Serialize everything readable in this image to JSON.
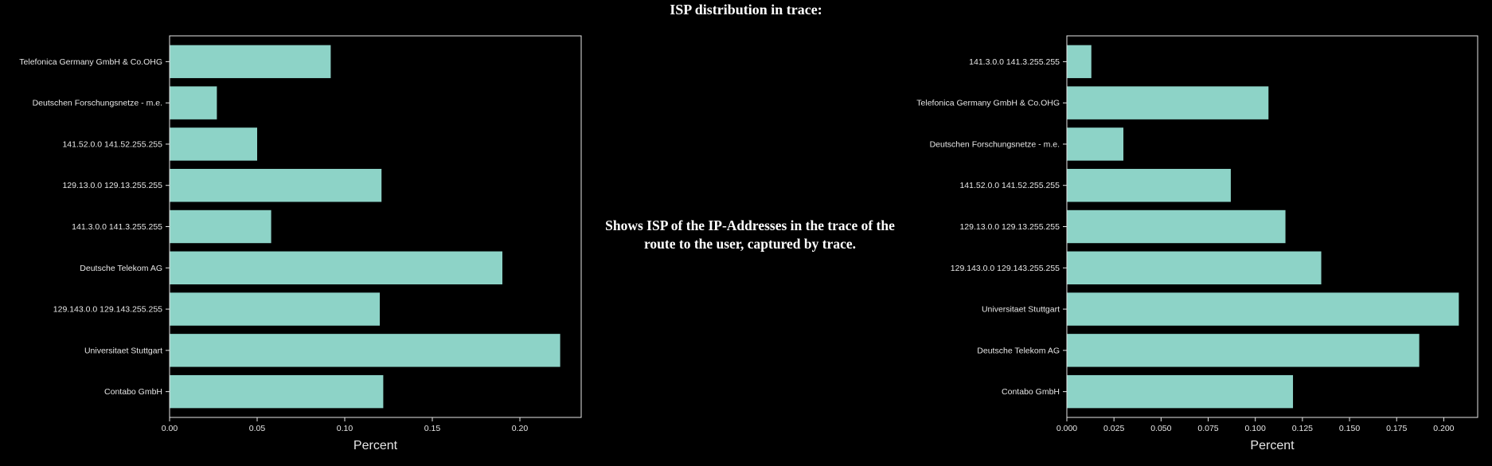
{
  "page": {
    "title": "ISP distribution in trace:",
    "description": "Shows ISP of the IP-Addresses in the trace of the route to the user, captured by trace.",
    "background": "#000000",
    "bar_color": "#8dd3c7"
  },
  "chart_data": [
    {
      "type": "bar",
      "orientation": "horizontal",
      "categories": [
        "Contabo GmbH",
        "Universitaet Stuttgart",
        "129.143.0.0 129.143.255.255",
        "Deutsche Telekom AG",
        "141.3.0.0 141.3.255.255",
        "129.13.0.0 129.13.255.255",
        "141.52.0.0 141.52.255.255",
        "Deutschen Forschungsnetze - m.e.",
        "Telefonica Germany GmbH & Co.OHG"
      ],
      "values": [
        0.122,
        0.223,
        0.12,
        0.19,
        0.058,
        0.121,
        0.05,
        0.027,
        0.092
      ],
      "xlabel": "Percent",
      "xlim": [
        0,
        0.235
      ],
      "xticks": [
        0.0,
        0.05,
        0.1,
        0.15,
        0.2
      ],
      "xtick_labels": [
        "0.00",
        "0.05",
        "0.10",
        "0.15",
        "0.20"
      ],
      "grid": false
    },
    {
      "type": "bar",
      "orientation": "horizontal",
      "categories": [
        "Contabo GmbH",
        "Deutsche Telekom AG",
        "Universitaet Stuttgart",
        "129.143.0.0 129.143.255.255",
        "129.13.0.0 129.13.255.255",
        "141.52.0.0 141.52.255.255",
        "Deutschen Forschungsnetze - m.e.",
        "Telefonica Germany GmbH & Co.OHG",
        "141.3.0.0 141.3.255.255"
      ],
      "values": [
        0.12,
        0.187,
        0.208,
        0.135,
        0.116,
        0.087,
        0.03,
        0.107,
        0.013
      ],
      "xlabel": "Percent",
      "xlim": [
        0,
        0.218
      ],
      "xticks": [
        0.0,
        0.025,
        0.05,
        0.075,
        0.1,
        0.125,
        0.15,
        0.175,
        0.2
      ],
      "xtick_labels": [
        "0.000",
        "0.025",
        "0.050",
        "0.075",
        "0.100",
        "0.125",
        "0.150",
        "0.175",
        "0.200"
      ],
      "grid": false
    }
  ]
}
